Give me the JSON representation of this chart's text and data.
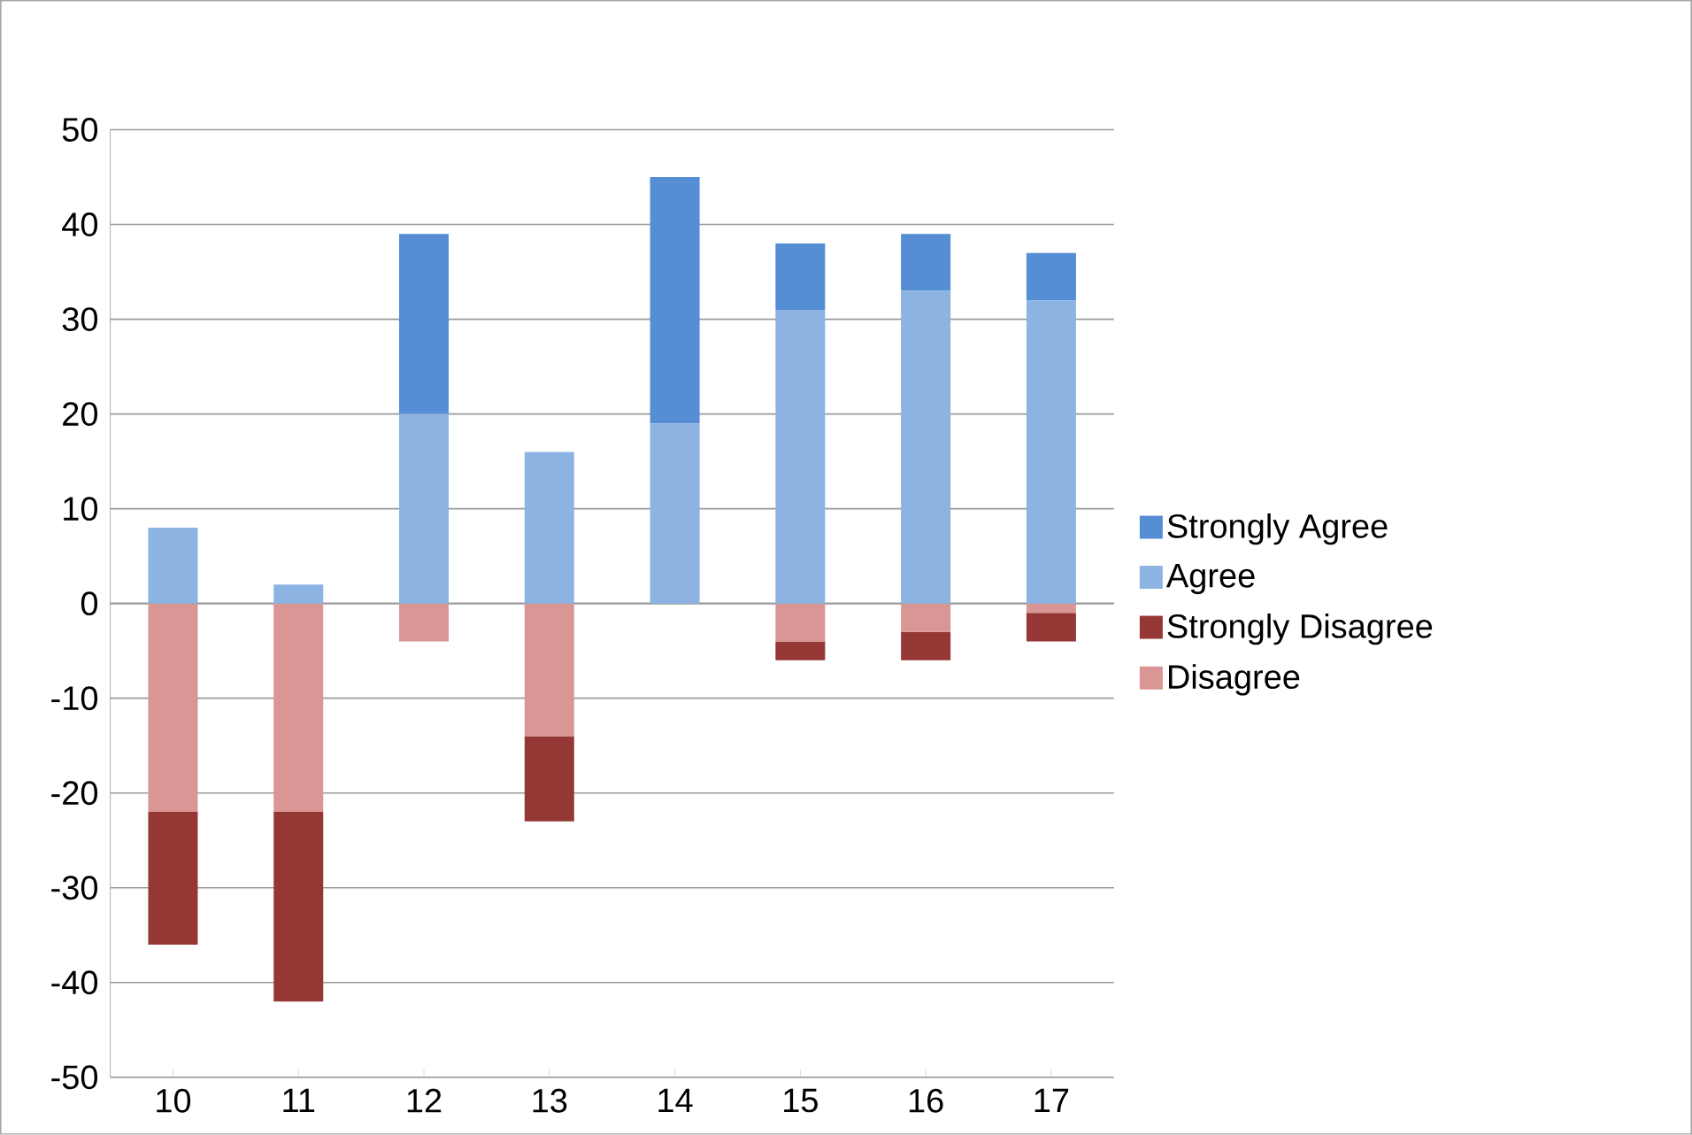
{
  "chart_data": {
    "type": "bar",
    "stacked": true,
    "categories": [
      "10",
      "11",
      "12",
      "13",
      "14",
      "15",
      "16",
      "17"
    ],
    "series": [
      {
        "name": "Agree",
        "color": "#8db3e2",
        "values": [
          8,
          2,
          20,
          16,
          19,
          31,
          33,
          32
        ]
      },
      {
        "name": "Strongly Agree",
        "color": "#558ed5",
        "values": [
          0,
          0,
          19,
          0,
          26,
          7,
          6,
          5
        ]
      },
      {
        "name": "Disagree",
        "color": "#d99694",
        "values": [
          -22,
          -22,
          -4,
          -14,
          0,
          -4,
          -3,
          -1
        ]
      },
      {
        "name": "Strongly Disagree",
        "color": "#953735",
        "values": [
          -14,
          -20,
          0,
          -9,
          0,
          -2,
          -3,
          -3
        ]
      }
    ],
    "ylim": [
      -50,
      50
    ],
    "yticks": [
      -50,
      -40,
      -30,
      -20,
      -10,
      0,
      10,
      20,
      30,
      40,
      50
    ],
    "grid": "y",
    "legend": "right"
  }
}
